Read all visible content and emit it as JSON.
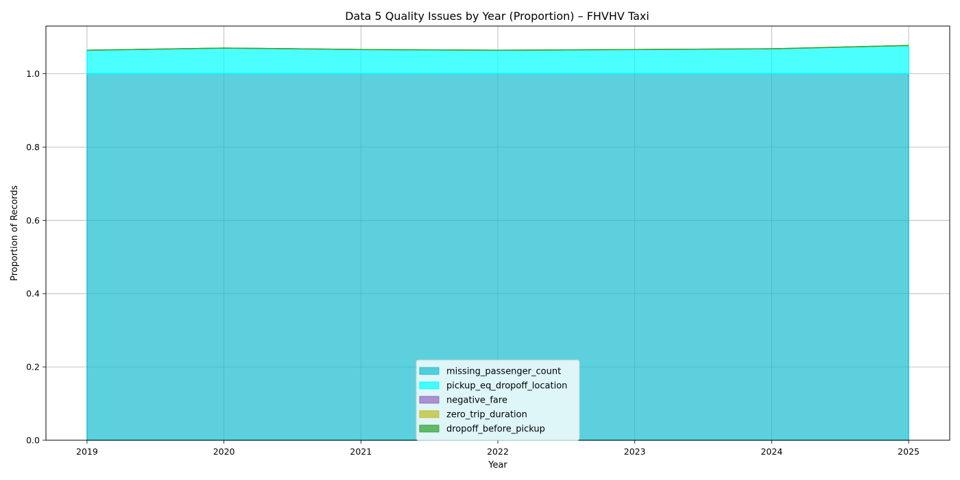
{
  "chart_data": {
    "type": "area",
    "stacked": true,
    "title": "Data 5 Quality Issues by Year (Proportion) – FHVHV Taxi",
    "xlabel": "Year",
    "ylabel": "Proportion of Records",
    "x": [
      2019,
      2020,
      2021,
      2022,
      2023,
      2024,
      2025
    ],
    "xlim": [
      2018.7,
      2025.3
    ],
    "ylim": [
      0,
      1.13
    ],
    "yticks": [
      0.0,
      0.2,
      0.4,
      0.6,
      0.8,
      1.0
    ],
    "grid": true,
    "legend_position": "bottom-center",
    "series": [
      {
        "name": "missing_passenger_count",
        "color": "#17becf",
        "values": [
          1.0,
          1.0,
          1.0,
          1.0,
          1.0,
          1.0,
          1.0
        ]
      },
      {
        "name": "pickup_eq_dropoff_location",
        "color": "#00ffff",
        "values": [
          0.064,
          0.07,
          0.066,
          0.064,
          0.066,
          0.068,
          0.077
        ]
      },
      {
        "name": "negative_fare",
        "color": "#9467bd",
        "values": [
          0.0,
          0.0,
          0.0,
          0.0,
          0.0,
          0.0,
          0.0
        ]
      },
      {
        "name": "zero_trip_duration",
        "color": "#bcbd22",
        "values": [
          0.0,
          0.0,
          0.0,
          0.0,
          0.0,
          0.0,
          0.0
        ]
      },
      {
        "name": "dropoff_before_pickup",
        "color": "#2ca02c",
        "values": [
          0.0,
          0.0,
          0.0,
          0.0,
          0.0,
          0.0,
          0.0
        ]
      }
    ]
  }
}
